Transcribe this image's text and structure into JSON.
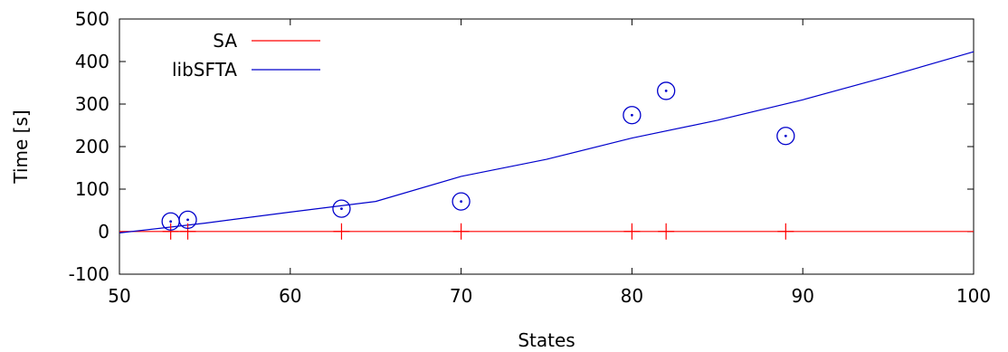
{
  "chart_data": {
    "type": "scatter",
    "xlabel": "States",
    "ylabel": "Time [s]",
    "xlim": [
      50,
      100
    ],
    "ylim": [
      -100,
      500
    ],
    "x_ticks": [
      50,
      60,
      70,
      80,
      90,
      100
    ],
    "x_tick_labels": [
      "50",
      "60",
      "70",
      "80",
      "90",
      "100"
    ],
    "y_ticks": [
      -100,
      0,
      100,
      200,
      300,
      400,
      500
    ],
    "y_tick_labels": [
      "-100",
      "0",
      "100",
      "200",
      "300",
      "400",
      "500"
    ],
    "grid": false,
    "legend_position": "top-left",
    "series": [
      {
        "name": "SA",
        "color": "#ff0000",
        "marker": "plus",
        "points": [
          {
            "x": 53,
            "y": 0.5
          },
          {
            "x": 54,
            "y": 0.5
          },
          {
            "x": 63,
            "y": 0.5
          },
          {
            "x": 70,
            "y": 0.5
          },
          {
            "x": 80,
            "y": 0.5
          },
          {
            "x": 82,
            "y": 0.5
          },
          {
            "x": 89,
            "y": 0.5
          }
        ],
        "fit": {
          "x": [
            50,
            100
          ],
          "y": [
            0.5,
            0.5
          ]
        }
      },
      {
        "name": "libSFTA",
        "color": "#0000cc",
        "marker": "circle-dot",
        "points": [
          {
            "x": 53,
            "y": 24
          },
          {
            "x": 54,
            "y": 28
          },
          {
            "x": 63,
            "y": 54
          },
          {
            "x": 70,
            "y": 71
          },
          {
            "x": 80,
            "y": 274
          },
          {
            "x": 82,
            "y": 331
          },
          {
            "x": 89,
            "y": 225
          }
        ],
        "fit": {
          "x": [
            50,
            55,
            60,
            65,
            70,
            75,
            80,
            85,
            90,
            95,
            100
          ],
          "y": [
            -3,
            20,
            46,
            71,
            130,
            170,
            220,
            262,
            310,
            365,
            423
          ]
        }
      }
    ]
  }
}
